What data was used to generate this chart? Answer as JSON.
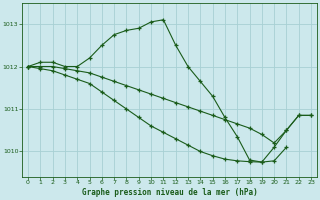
{
  "title": "Graphe pression niveau de la mer (hPa)",
  "bg_color": "#cce8ec",
  "line_color": "#1a5c1a",
  "grid_color": "#a8d0d4",
  "xlim_min": -0.5,
  "xlim_max": 23.5,
  "ylim_min": 1009.4,
  "ylim_max": 1013.5,
  "yticks": [
    1010,
    1011,
    1012,
    1013
  ],
  "xticks": [
    0,
    1,
    2,
    3,
    4,
    5,
    6,
    7,
    8,
    9,
    10,
    11,
    12,
    13,
    14,
    15,
    16,
    17,
    18,
    19,
    20,
    21,
    22,
    23
  ],
  "series": [
    {
      "x": [
        0,
        1,
        2,
        3,
        4,
        5,
        6,
        7,
        8,
        9,
        10,
        11,
        12,
        13,
        14,
        15,
        16,
        17,
        18,
        19,
        20,
        21,
        22,
        23
      ],
      "y": [
        1012.0,
        1012.1,
        1012.1,
        1012.0,
        1012.0,
        1012.2,
        1012.5,
        1012.75,
        1012.85,
        1012.9,
        1013.05,
        1013.1,
        1012.5,
        1012.0,
        1011.65,
        1011.3,
        1010.8,
        1010.35,
        1009.8,
        1009.75,
        1010.1,
        1010.5,
        1010.85,
        1010.85
      ]
    },
    {
      "x": [
        0,
        1,
        2,
        3,
        4,
        5,
        6,
        7,
        8,
        9,
        10,
        11,
        12,
        13,
        14,
        15,
        16,
        17,
        18,
        19,
        20,
        21,
        22,
        23
      ],
      "y": [
        1012.0,
        1012.0,
        1012.0,
        1011.95,
        1011.9,
        1011.85,
        1011.75,
        1011.65,
        1011.55,
        1011.45,
        1011.35,
        1011.25,
        1011.15,
        1011.05,
        1010.95,
        1010.85,
        1010.75,
        1010.65,
        1010.55,
        1010.4,
        1010.2,
        1010.5,
        1010.85,
        1010.85
      ]
    },
    {
      "x": [
        0,
        1,
        2,
        3,
        4,
        5,
        6,
        7,
        8,
        9,
        10,
        11,
        12,
        13,
        14,
        15,
        16,
        17,
        18,
        19,
        20,
        21
      ],
      "y": [
        1012.0,
        1011.95,
        1011.9,
        1011.8,
        1011.7,
        1011.6,
        1011.4,
        1011.2,
        1011.0,
        1010.8,
        1010.6,
        1010.45,
        1010.3,
        1010.15,
        1010.0,
        1009.9,
        1009.82,
        1009.78,
        1009.76,
        1009.75,
        1009.78,
        1010.1
      ]
    }
  ]
}
